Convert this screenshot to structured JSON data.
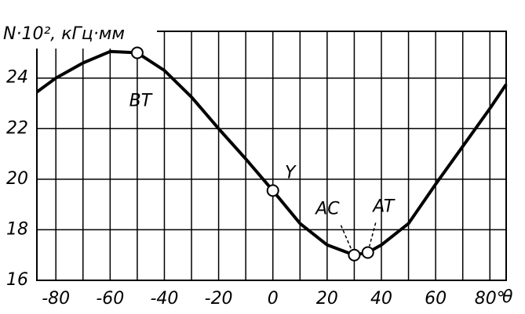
{
  "chart_data": {
    "type": "line",
    "title": "N·10², кГц·мм",
    "x_label": "θ",
    "x": [
      -87,
      -80,
      -70,
      -60,
      -50,
      -40,
      -30,
      -20,
      -10,
      0,
      10,
      20,
      30,
      35,
      40,
      50,
      60,
      70,
      80,
      86
    ],
    "values": [
      23.45,
      24.0,
      24.6,
      25.05,
      25.0,
      24.3,
      23.25,
      22.0,
      20.8,
      19.55,
      18.25,
      17.4,
      17.0,
      17.1,
      17.4,
      18.25,
      19.8,
      21.3,
      22.8,
      23.75
    ],
    "color": "#000000",
    "xlim": [
      -87,
      86
    ],
    "ylim": [
      16,
      25.85
    ],
    "xticks": [
      -80,
      -60,
      -40,
      -20,
      0,
      20,
      40,
      60,
      {
        "value": 80,
        "label": "80°"
      }
    ],
    "xgrid": [
      -70,
      -50,
      -30,
      -10,
      10,
      30,
      50,
      70
    ],
    "yticks": [
      16,
      18,
      20,
      22,
      24
    ],
    "grid": true,
    "markers": [
      {
        "label": "BT",
        "x": -50,
        "y": 25.0
      },
      {
        "label": "Y",
        "x": 0,
        "y": 19.55
      },
      {
        "label": "AC",
        "x": 30,
        "y": 17.0
      },
      {
        "label": "AT",
        "x": 35,
        "y": 17.1
      }
    ]
  }
}
